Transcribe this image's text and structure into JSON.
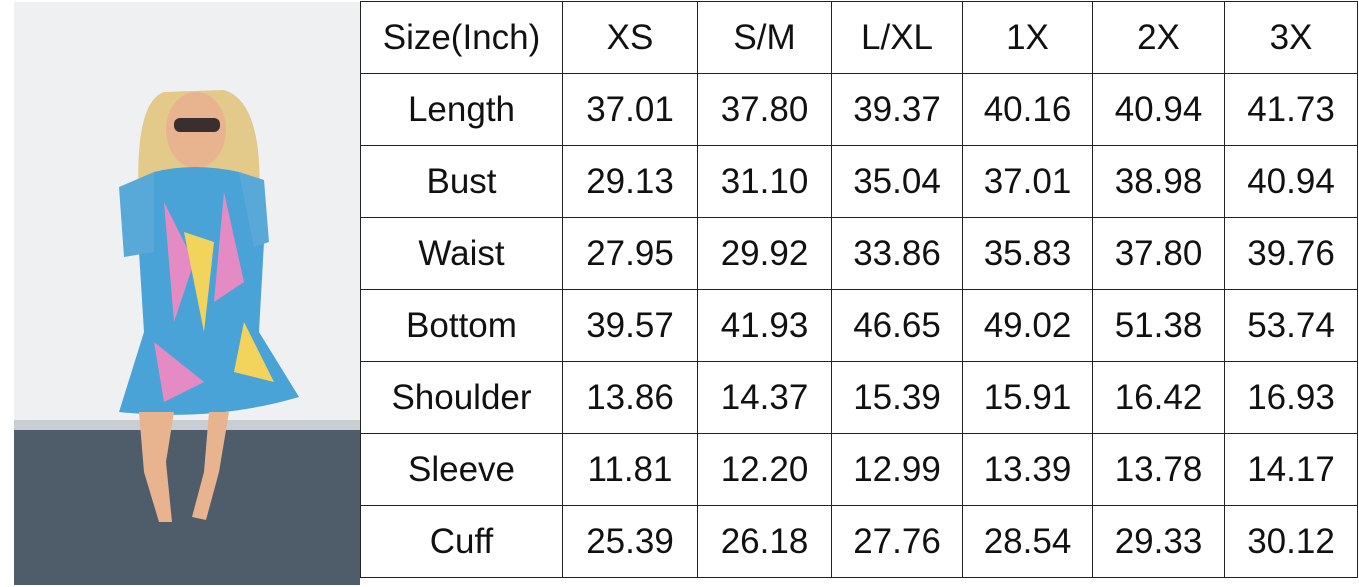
{
  "table": {
    "header": [
      "Size(Inch)",
      "XS",
      "S/M",
      "L/XL",
      "1X",
      "2X",
      "3X"
    ],
    "rows": [
      [
        "Length",
        "37.01",
        "37.80",
        "39.37",
        "40.16",
        "40.94",
        "41.73"
      ],
      [
        "Bust",
        "29.13",
        "31.10",
        "35.04",
        "37.01",
        "38.98",
        "40.94"
      ],
      [
        "Waist",
        "27.95",
        "29.92",
        "33.86",
        "35.83",
        "37.80",
        "39.76"
      ],
      [
        "Bottom",
        "39.57",
        "41.93",
        "46.65",
        "49.02",
        "51.38",
        "53.74"
      ],
      [
        "Shoulder",
        "13.86",
        "14.37",
        "15.39",
        "15.91",
        "16.42",
        "16.93"
      ],
      [
        "Sleeve",
        "11.81",
        "12.20",
        "12.99",
        "13.39",
        "13.78",
        "14.17"
      ],
      [
        "Cuff",
        "25.39",
        "26.18",
        "27.76",
        "28.54",
        "29.33",
        "30.12"
      ]
    ]
  }
}
